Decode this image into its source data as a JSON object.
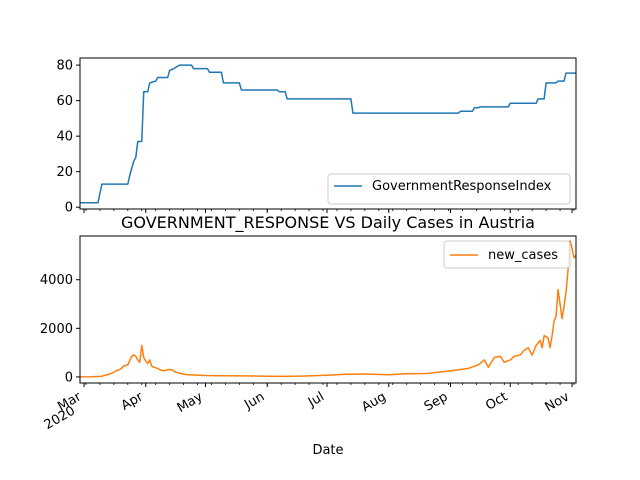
{
  "chart_data": [
    {
      "type": "line",
      "title": "",
      "xlabel": "",
      "ylabel": "",
      "ylim": [
        -1,
        84
      ],
      "yticks": [
        0,
        20,
        40,
        60,
        80
      ],
      "xlim": [
        "2020-02-28",
        "2020-11-03"
      ],
      "grid": false,
      "legend_position": "lower-right",
      "series": [
        {
          "name": "GovernmentResponseIndex",
          "color": "#1f77b4",
          "points": [
            [
              "2020-02-28",
              2.5
            ],
            [
              "2020-03-08",
              2.5
            ],
            [
              "2020-03-10",
              13
            ],
            [
              "2020-03-23",
              13
            ],
            [
              "2020-03-24",
              18
            ],
            [
              "2020-03-26",
              26
            ],
            [
              "2020-03-27",
              28
            ],
            [
              "2020-03-28",
              37
            ],
            [
              "2020-03-30",
              37
            ],
            [
              "2020-03-31",
              65
            ],
            [
              "2020-04-02",
              65
            ],
            [
              "2020-04-03",
              70
            ],
            [
              "2020-04-06",
              71
            ],
            [
              "2020-04-07",
              73
            ],
            [
              "2020-04-12",
              73
            ],
            [
              "2020-04-13",
              77
            ],
            [
              "2020-04-15",
              78
            ],
            [
              "2020-04-18",
              80
            ],
            [
              "2020-04-24",
              80
            ],
            [
              "2020-04-25",
              78
            ],
            [
              "2020-05-02",
              78
            ],
            [
              "2020-05-03",
              76
            ],
            [
              "2020-05-09",
              76
            ],
            [
              "2020-05-10",
              70
            ],
            [
              "2020-05-18",
              70
            ],
            [
              "2020-05-19",
              66
            ],
            [
              "2020-06-06",
              66
            ],
            [
              "2020-06-07",
              65
            ],
            [
              "2020-06-10",
              65
            ],
            [
              "2020-06-11",
              61
            ],
            [
              "2020-07-13",
              61
            ],
            [
              "2020-07-14",
              53
            ],
            [
              "2020-09-05",
              53
            ],
            [
              "2020-09-06",
              54
            ],
            [
              "2020-09-12",
              54
            ],
            [
              "2020-09-13",
              56
            ],
            [
              "2020-09-15",
              56
            ],
            [
              "2020-09-16",
              56.5
            ],
            [
              "2020-09-30",
              56.5
            ],
            [
              "2020-10-01",
              58.5
            ],
            [
              "2020-10-14",
              58.5
            ],
            [
              "2020-10-15",
              61
            ],
            [
              "2020-10-18",
              61
            ],
            [
              "2020-10-19",
              70
            ],
            [
              "2020-10-24",
              70
            ],
            [
              "2020-10-25",
              71
            ],
            [
              "2020-10-28",
              71
            ],
            [
              "2020-10-29",
              75.5
            ],
            [
              "2020-11-03",
              75.5
            ]
          ]
        }
      ]
    },
    {
      "type": "line",
      "title": "GOVERNMENT_RESPONSE VS Daily Cases in Austria",
      "xlabel": "Date",
      "ylabel": "",
      "ylim": [
        -250,
        5800
      ],
      "yticks": [
        0,
        2000,
        4000
      ],
      "xlim": [
        "2020-02-28",
        "2020-11-03"
      ],
      "x_ticks": [
        {
          "date": "2020-03-01",
          "label": "Mar",
          "sublabel": "2020"
        },
        {
          "date": "2020-04-01",
          "label": "Apr"
        },
        {
          "date": "2020-05-01",
          "label": "May"
        },
        {
          "date": "2020-06-01",
          "label": "Jun"
        },
        {
          "date": "2020-07-01",
          "label": "Jul"
        },
        {
          "date": "2020-08-01",
          "label": "Aug"
        },
        {
          "date": "2020-09-01",
          "label": "Sep"
        },
        {
          "date": "2020-10-01",
          "label": "Oct"
        },
        {
          "date": "2020-11-01",
          "label": "Nov"
        }
      ],
      "grid": false,
      "legend_position": "top-right",
      "series": [
        {
          "name": "new_cases",
          "color": "#ff7f0e",
          "points": [
            [
              "2020-02-28",
              0
            ],
            [
              "2020-03-05",
              5
            ],
            [
              "2020-03-10",
              30
            ],
            [
              "2020-03-13",
              100
            ],
            [
              "2020-03-15",
              150
            ],
            [
              "2020-03-17",
              250
            ],
            [
              "2020-03-19",
              300
            ],
            [
              "2020-03-21",
              450
            ],
            [
              "2020-03-23",
              500
            ],
            [
              "2020-03-25",
              850
            ],
            [
              "2020-03-26",
              900
            ],
            [
              "2020-03-27",
              850
            ],
            [
              "2020-03-28",
              700
            ],
            [
              "2020-03-29",
              600
            ],
            [
              "2020-03-30",
              1300
            ],
            [
              "2020-03-31",
              800
            ],
            [
              "2020-04-01",
              650
            ],
            [
              "2020-04-02",
              550
            ],
            [
              "2020-04-03",
              700
            ],
            [
              "2020-04-04",
              450
            ],
            [
              "2020-04-05",
              400
            ],
            [
              "2020-04-07",
              350
            ],
            [
              "2020-04-08",
              300
            ],
            [
              "2020-04-10",
              250
            ],
            [
              "2020-04-12",
              300
            ],
            [
              "2020-04-14",
              300
            ],
            [
              "2020-04-16",
              200
            ],
            [
              "2020-04-18",
              150
            ],
            [
              "2020-04-21",
              100
            ],
            [
              "2020-04-25",
              80
            ],
            [
              "2020-05-01",
              60
            ],
            [
              "2020-05-10",
              50
            ],
            [
              "2020-05-20",
              45
            ],
            [
              "2020-06-01",
              30
            ],
            [
              "2020-06-10",
              25
            ],
            [
              "2020-06-20",
              40
            ],
            [
              "2020-07-01",
              70
            ],
            [
              "2020-07-10",
              110
            ],
            [
              "2020-07-20",
              120
            ],
            [
              "2020-08-01",
              90
            ],
            [
              "2020-08-10",
              130
            ],
            [
              "2020-08-20",
              140
            ],
            [
              "2020-09-01",
              250
            ],
            [
              "2020-09-10",
              350
            ],
            [
              "2020-09-15",
              500
            ],
            [
              "2020-09-18",
              700
            ],
            [
              "2020-09-20",
              400
            ],
            [
              "2020-09-23",
              800
            ],
            [
              "2020-09-26",
              850
            ],
            [
              "2020-09-28",
              600
            ],
            [
              "2020-10-01",
              700
            ],
            [
              "2020-10-03",
              850
            ],
            [
              "2020-10-06",
              900
            ],
            [
              "2020-10-08",
              1100
            ],
            [
              "2020-10-10",
              1200
            ],
            [
              "2020-10-12",
              900
            ],
            [
              "2020-10-14",
              1300
            ],
            [
              "2020-10-16",
              1500
            ],
            [
              "2020-10-17",
              1200
            ],
            [
              "2020-10-18",
              1700
            ],
            [
              "2020-10-20",
              1600
            ],
            [
              "2020-10-21",
              1200
            ],
            [
              "2020-10-22",
              1700
            ],
            [
              "2020-10-23",
              2300
            ],
            [
              "2020-10-24",
              2500
            ],
            [
              "2020-10-25",
              3600
            ],
            [
              "2020-10-26",
              3000
            ],
            [
              "2020-10-27",
              2400
            ],
            [
              "2020-10-28",
              2900
            ],
            [
              "2020-10-29",
              3500
            ],
            [
              "2020-10-30",
              4400
            ],
            [
              "2020-10-31",
              5600
            ],
            [
              "2020-11-01",
              5300
            ],
            [
              "2020-11-02",
              4900
            ],
            [
              "2020-11-03",
              5000
            ]
          ]
        }
      ]
    }
  ]
}
